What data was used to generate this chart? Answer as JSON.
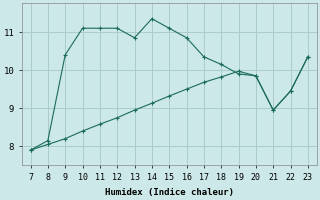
{
  "xlabel": "Humidex (Indice chaleur)",
  "background_color": "#cce8e8",
  "grid_color": "#aacccc",
  "line_color": "#1a6b5a",
  "line1_x": [
    7,
    8,
    9,
    10,
    11,
    12,
    13,
    14,
    15,
    16,
    17,
    18,
    19,
    20,
    21,
    22,
    23
  ],
  "line1_y": [
    7.9,
    8.15,
    10.4,
    11.1,
    11.1,
    11.1,
    10.85,
    11.35,
    11.1,
    10.85,
    10.35,
    10.15,
    9.9,
    9.85,
    8.95,
    9.45,
    10.35
  ],
  "line2_x": [
    7,
    8,
    9,
    10,
    11,
    12,
    13,
    14,
    15,
    16,
    17,
    18,
    19,
    20,
    21,
    22,
    23
  ],
  "line2_y": [
    7.9,
    8.05,
    8.2,
    8.4,
    8.58,
    8.75,
    8.95,
    9.13,
    9.32,
    9.5,
    9.68,
    9.82,
    9.97,
    9.85,
    8.95,
    9.45,
    10.35
  ],
  "xlim": [
    6.5,
    23.5
  ],
  "ylim": [
    7.5,
    11.75
  ],
  "xticks": [
    7,
    8,
    9,
    10,
    11,
    12,
    13,
    14,
    15,
    16,
    17,
    18,
    19,
    20,
    21,
    22,
    23
  ],
  "yticks": [
    8,
    9,
    10,
    11
  ]
}
